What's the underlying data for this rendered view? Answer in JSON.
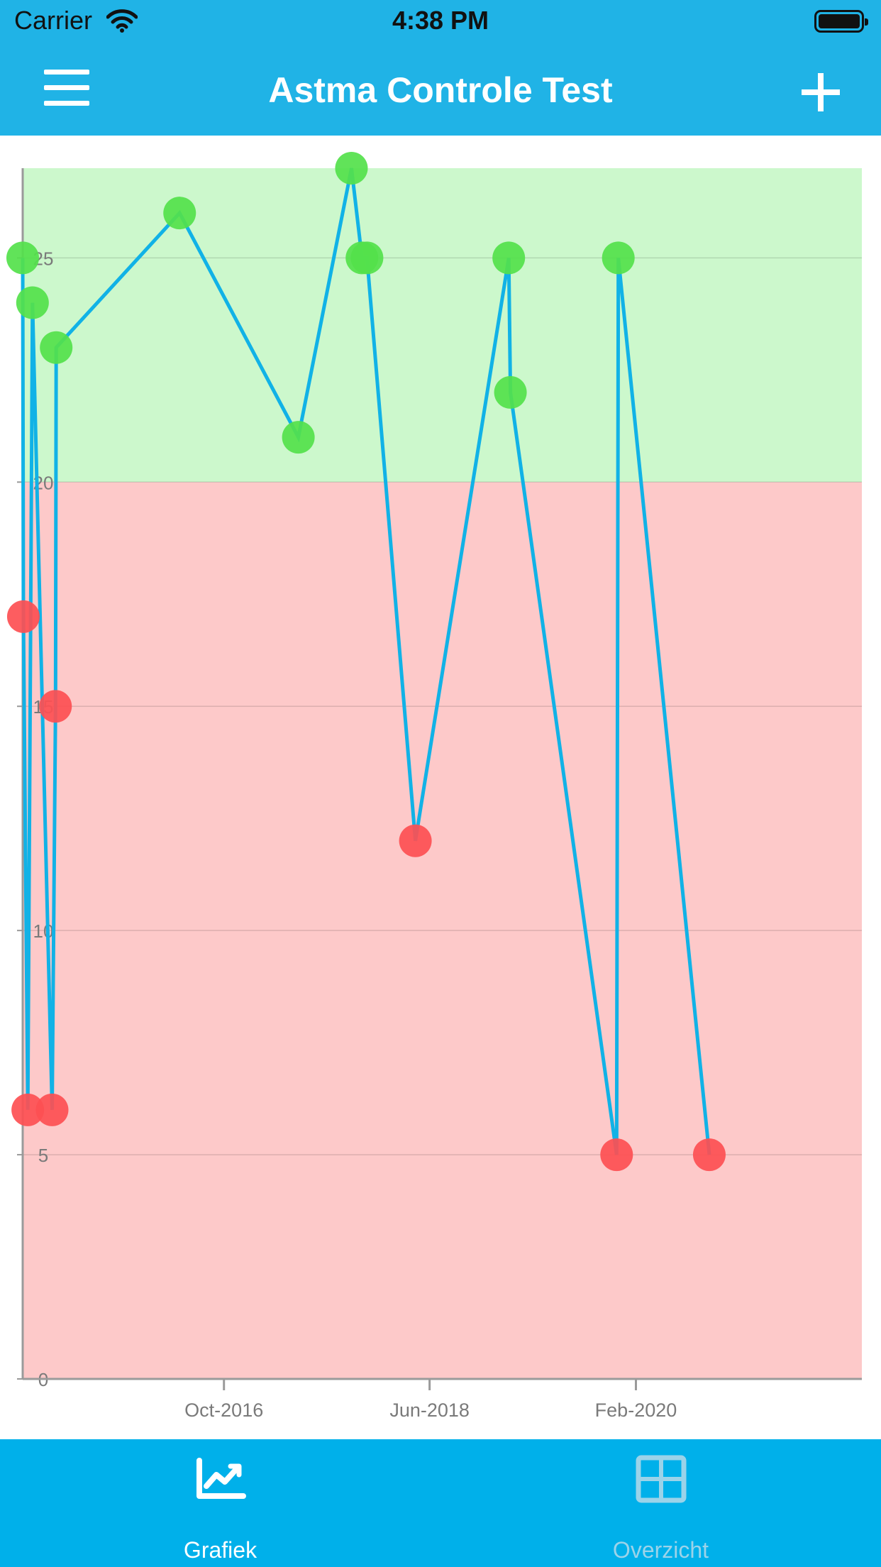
{
  "status_bar": {
    "carrier": "Carrier",
    "time": "4:38 PM",
    "icons": [
      "wifi-icon",
      "battery-icon"
    ]
  },
  "nav": {
    "title": "Astma Controle Test",
    "left_icon": "hamburger-menu-icon",
    "right_icon": "plus-icon"
  },
  "colors": {
    "bar": "#20b3e6",
    "line": "#11b2e6",
    "good_zone": "#ccf8cc",
    "bad_zone": "#fdc9c9",
    "good_point": "#54e14b",
    "bad_point": "#fd4f53"
  },
  "chart_data": {
    "type": "line",
    "title": "",
    "xlabel": "",
    "ylabel": "",
    "ylim": [
      0,
      27
    ],
    "yticks": [
      0,
      5,
      10,
      15,
      20,
      25
    ],
    "xticks": [
      {
        "date": "2016-10-01",
        "label": "Oct-2016"
      },
      {
        "date": "2018-06-01",
        "label": "Jun-2018"
      },
      {
        "date": "2020-02-01",
        "label": "Feb-2020"
      }
    ],
    "xlim": [
      "2015-02-14",
      "2021-11-30"
    ],
    "zones": [
      {
        "from": 20,
        "to": 27,
        "meaning": "good",
        "color": "#ccf8cc"
      },
      {
        "from": 0,
        "to": 20,
        "meaning": "bad",
        "color": "#fdc9c9"
      }
    ],
    "grid": true,
    "series": [
      {
        "points": [
          {
            "date": "2015-02-14",
            "value": 25
          },
          {
            "date": "2015-02-16",
            "value": 17
          },
          {
            "date": "2015-03-01",
            "value": 6
          },
          {
            "date": "2015-03-15",
            "value": 24
          },
          {
            "date": "2015-05-12",
            "value": 6
          },
          {
            "date": "2015-05-22",
            "value": 15
          },
          {
            "date": "2015-05-24",
            "value": 23
          },
          {
            "date": "2016-05-23",
            "value": 26
          },
          {
            "date": "2017-05-09",
            "value": 21
          },
          {
            "date": "2017-10-13",
            "value": 27
          },
          {
            "date": "2017-11-13",
            "value": 25
          },
          {
            "date": "2017-11-28",
            "value": 25
          },
          {
            "date": "2018-04-20",
            "value": 12
          },
          {
            "date": "2019-01-21",
            "value": 25
          },
          {
            "date": "2019-01-26",
            "value": 22
          },
          {
            "date": "2019-12-06",
            "value": 5
          },
          {
            "date": "2019-12-11",
            "value": 25
          },
          {
            "date": "2020-09-05",
            "value": 5
          }
        ]
      }
    ]
  },
  "tabs": [
    {
      "label": "Grafiek",
      "icon": "line-chart-icon",
      "active": true
    },
    {
      "label": "Overzicht",
      "icon": "grid-table-icon",
      "active": false
    }
  ]
}
